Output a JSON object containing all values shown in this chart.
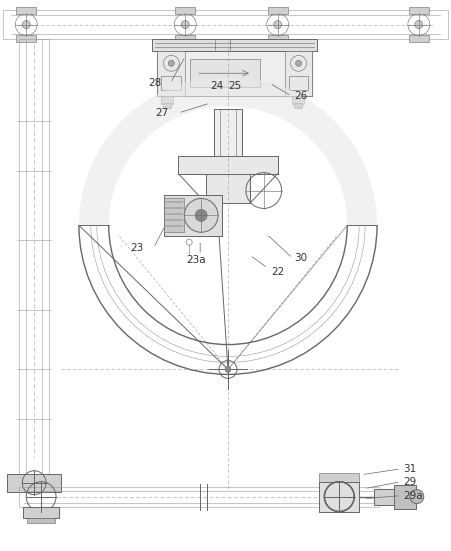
{
  "bg_color": "#ffffff",
  "line_color": "#999999",
  "dark_line": "#666666",
  "darker": "#444444",
  "label_color": "#333333",
  "fig_width": 4.51,
  "fig_height": 5.51,
  "dpi": 100
}
